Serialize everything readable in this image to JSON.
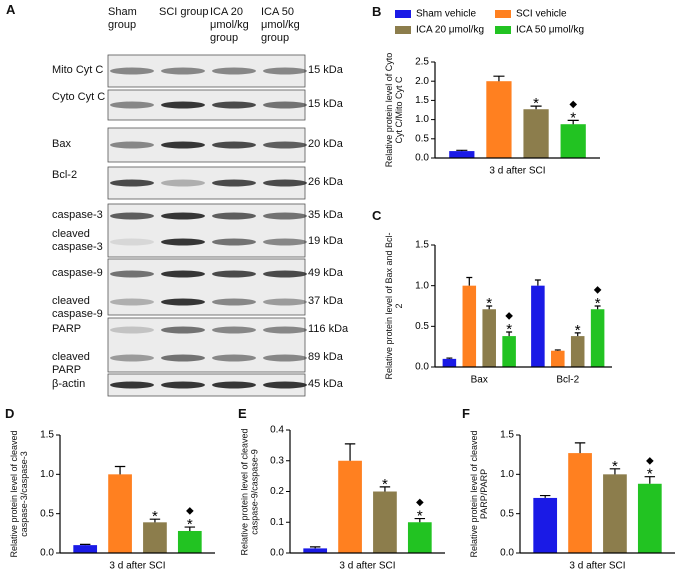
{
  "blot": {
    "panel_label": "A",
    "lanes": [
      "Sham group",
      "SCI group",
      "ICA 20 μmol/kg group",
      "ICA 50 μmol/kg group"
    ],
    "rows": [
      {
        "label": "Mito Cyt C",
        "kda": "15 kDa"
      },
      {
        "label": "Cyto Cyt C",
        "kda": "15 kDa"
      },
      {
        "label": "Bax",
        "kda": "20 kDa"
      },
      {
        "label": "Bcl-2",
        "kda": "26 kDa"
      },
      {
        "label": "caspase-3",
        "kda": "35 kDa"
      },
      {
        "label": "cleaved caspase-3",
        "kda": "19 kDa"
      },
      {
        "label": "caspase-9",
        "kda": "49 kDa"
      },
      {
        "label": "cleaved caspase-9",
        "kda": "37 kDa"
      },
      {
        "label": "PARP",
        "kda": "116 kDa"
      },
      {
        "label": "cleaved PARP",
        "kda": "89 kDa"
      },
      {
        "label": "β-actin",
        "kda": "45 kDa"
      }
    ]
  },
  "chart_data": [
    {
      "type": "bar",
      "panel_label": "B",
      "ylabel": "Relative protein level of Cyto Cyt C/Mito Cyt C",
      "categories": [
        "3 d after SCI"
      ],
      "ylim": [
        0,
        2.5
      ],
      "yticks": [
        {
          "value": 0,
          "label": "0.0"
        },
        0.5,
        {
          "value": 1,
          "label": "1.0"
        },
        1.5,
        {
          "value": 2,
          "label": "2.0"
        },
        2.5
      ],
      "series": [
        {
          "name": "Sham vehicle",
          "color": "#1a1ae6",
          "values": [
            0.18
          ],
          "errors": [
            0.02
          ]
        },
        {
          "name": "SCI vehicle",
          "color": "#ff8020",
          "values": [
            2.0
          ],
          "errors": [
            0.13
          ]
        },
        {
          "name": "ICA 20 μmol/kg",
          "color": "#8c7d4c",
          "values": [
            1.27
          ],
          "errors": [
            0.08
          ]
        },
        {
          "name": "ICA 50 μmol/kg",
          "color": "#22c322",
          "values": [
            0.88
          ],
          "errors": [
            0.1
          ]
        }
      ],
      "annotations": [
        {
          "series": 2,
          "index": 0,
          "text": "*"
        },
        {
          "series": 3,
          "index": 0,
          "text": "*"
        },
        {
          "series": 3,
          "index": 0,
          "text": "◆"
        }
      ]
    },
    {
      "type": "bar",
      "panel_label": "C",
      "ylabel": "Relative protein level of Bax and Bcl-2",
      "categories": [
        "Bax",
        "Bcl-2"
      ],
      "ylim": [
        0,
        1.5
      ],
      "yticks": [
        {
          "value": 0,
          "label": "0.0"
        },
        0.5,
        {
          "value": 1,
          "label": "1.0"
        },
        1.5
      ],
      "series": [
        {
          "color": "#1a1ae6",
          "values": [
            0.1,
            1.0
          ],
          "errors": [
            0.01,
            0.07
          ]
        },
        {
          "color": "#ff8020",
          "values": [
            1.0,
            0.2
          ],
          "errors": [
            0.1,
            0.01
          ]
        },
        {
          "color": "#8c7d4c",
          "values": [
            0.71,
            0.38
          ],
          "errors": [
            0.04,
            0.04
          ]
        },
        {
          "color": "#22c322",
          "values": [
            0.38,
            0.71
          ],
          "errors": [
            0.05,
            0.04
          ]
        }
      ],
      "annotations": [
        {
          "series": 2,
          "index": 0,
          "text": "*"
        },
        {
          "series": 3,
          "index": 0,
          "text": "*"
        },
        {
          "series": 3,
          "index": 0,
          "text": "◆"
        },
        {
          "series": 2,
          "index": 1,
          "text": "*"
        },
        {
          "series": 3,
          "index": 1,
          "text": "*"
        },
        {
          "series": 3,
          "index": 1,
          "text": "◆"
        }
      ]
    },
    {
      "type": "bar",
      "panel_label": "D",
      "ylabel": "Relative protein level of cleaved caspase-3/caspase-3",
      "categories": [
        "3 d after SCI"
      ],
      "ylim": [
        0,
        1.5
      ],
      "yticks": [
        {
          "value": 0,
          "label": "0.0"
        },
        0.5,
        {
          "value": 1,
          "label": "1.0"
        },
        1.5
      ],
      "series": [
        {
          "color": "#1a1ae6",
          "values": [
            0.1
          ],
          "errors": [
            0.01
          ]
        },
        {
          "color": "#ff8020",
          "values": [
            1.0
          ],
          "errors": [
            0.1
          ]
        },
        {
          "color": "#8c7d4c",
          "values": [
            0.39
          ],
          "errors": [
            0.04
          ]
        },
        {
          "color": "#22c322",
          "values": [
            0.28
          ],
          "errors": [
            0.05
          ]
        }
      ],
      "annotations": [
        {
          "series": 2,
          "index": 0,
          "text": "*"
        },
        {
          "series": 3,
          "index": 0,
          "text": "*"
        },
        {
          "series": 3,
          "index": 0,
          "text": "◆"
        }
      ]
    },
    {
      "type": "bar",
      "panel_label": "E",
      "ylabel": "Relative protein level of cleaved caspase-9/caspase-9",
      "categories": [
        "3 d after SCI"
      ],
      "ylim": [
        0,
        0.4
      ],
      "yticks": [
        {
          "value": 0,
          "label": "0.0"
        },
        0.1,
        0.2,
        0.3,
        0.4
      ],
      "series": [
        {
          "color": "#1a1ae6",
          "values": [
            0.015
          ],
          "errors": [
            0.005
          ]
        },
        {
          "color": "#ff8020",
          "values": [
            0.3
          ],
          "errors": [
            0.055
          ]
        },
        {
          "color": "#8c7d4c",
          "values": [
            0.2
          ],
          "errors": [
            0.015
          ]
        },
        {
          "color": "#22c322",
          "values": [
            0.1
          ],
          "errors": [
            0.012
          ]
        }
      ],
      "annotations": [
        {
          "series": 2,
          "index": 0,
          "text": "*"
        },
        {
          "series": 3,
          "index": 0,
          "text": "*"
        },
        {
          "series": 3,
          "index": 0,
          "text": "◆"
        }
      ]
    },
    {
      "type": "bar",
      "panel_label": "F",
      "ylabel": "Relative protein level of cleaved PARP/PARP",
      "categories": [
        "3 d after SCI"
      ],
      "ylim": [
        0,
        1.5
      ],
      "yticks": [
        {
          "value": 0,
          "label": "0.0"
        },
        0.5,
        {
          "value": 1,
          "label": "1.0"
        },
        1.5
      ],
      "series": [
        {
          "color": "#1a1ae6",
          "values": [
            0.7
          ],
          "errors": [
            0.03
          ]
        },
        {
          "color": "#ff8020",
          "values": [
            1.27
          ],
          "errors": [
            0.13
          ]
        },
        {
          "color": "#8c7d4c",
          "values": [
            1.0
          ],
          "errors": [
            0.07
          ]
        },
        {
          "color": "#22c322",
          "values": [
            0.88
          ],
          "errors": [
            0.09
          ]
        }
      ],
      "annotations": [
        {
          "series": 2,
          "index": 0,
          "text": "*"
        },
        {
          "series": 3,
          "index": 0,
          "text": "*"
        },
        {
          "series": 3,
          "index": 0,
          "text": "◆"
        }
      ]
    }
  ]
}
